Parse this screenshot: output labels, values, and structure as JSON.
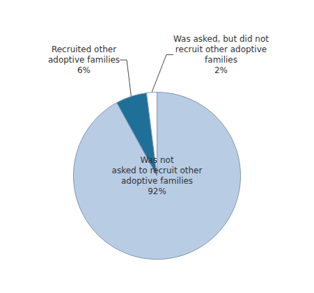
{
  "chart_data": {
    "type": "pie",
    "categories": [
      "Was not\nasked to recruit other\nadoptive families",
      "Recruited other\nadoptive families",
      "Was asked, but did not\nrecruit other adoptive\nfamilies"
    ],
    "values": [
      92,
      6,
      2
    ],
    "value_labels": [
      "92%",
      "6%",
      "2%"
    ],
    "colors": [
      "#b8cce4",
      "#1f7098",
      "#ffffff"
    ],
    "data_labels": true
  }
}
